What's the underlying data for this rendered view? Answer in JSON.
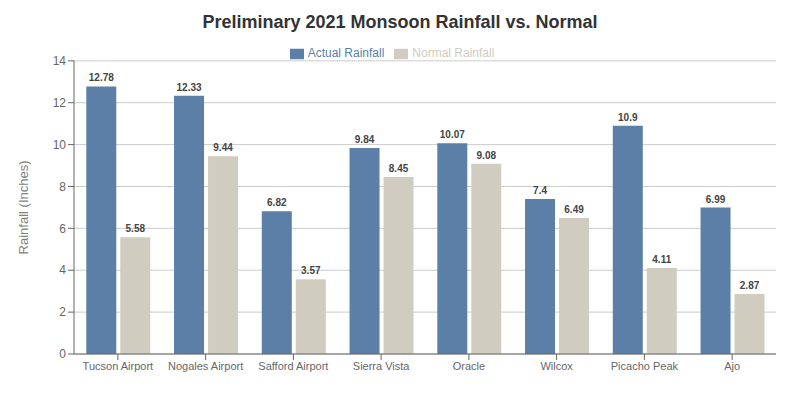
{
  "chart_data": {
    "type": "bar",
    "title": "Preliminary 2021 Monsoon Rainfall vs. Normal",
    "ylabel": "Rainfall (Inches)",
    "categories": [
      "Tucson Airport",
      "Nogales Airport",
      "Safford Airport",
      "Sierra Vista",
      "Oracle",
      "Wilcox",
      "Picacho Peak",
      "Ajo"
    ],
    "series": [
      {
        "name": "Actual Rainfall",
        "color": "#5b7fa6",
        "values": [
          12.78,
          12.33,
          6.82,
          9.84,
          10.07,
          7.4,
          10.9,
          6.99
        ]
      },
      {
        "name": "Normal Rainfall",
        "color": "#d0ccc0",
        "values": [
          5.58,
          9.44,
          3.57,
          8.45,
          9.08,
          6.49,
          4.11,
          2.87
        ]
      }
    ],
    "ylim": [
      0,
      14
    ],
    "yticks": [
      0,
      2,
      4,
      6,
      8,
      10,
      12,
      14
    ],
    "grid": true,
    "legend": "upper center",
    "data_labels": true
  }
}
